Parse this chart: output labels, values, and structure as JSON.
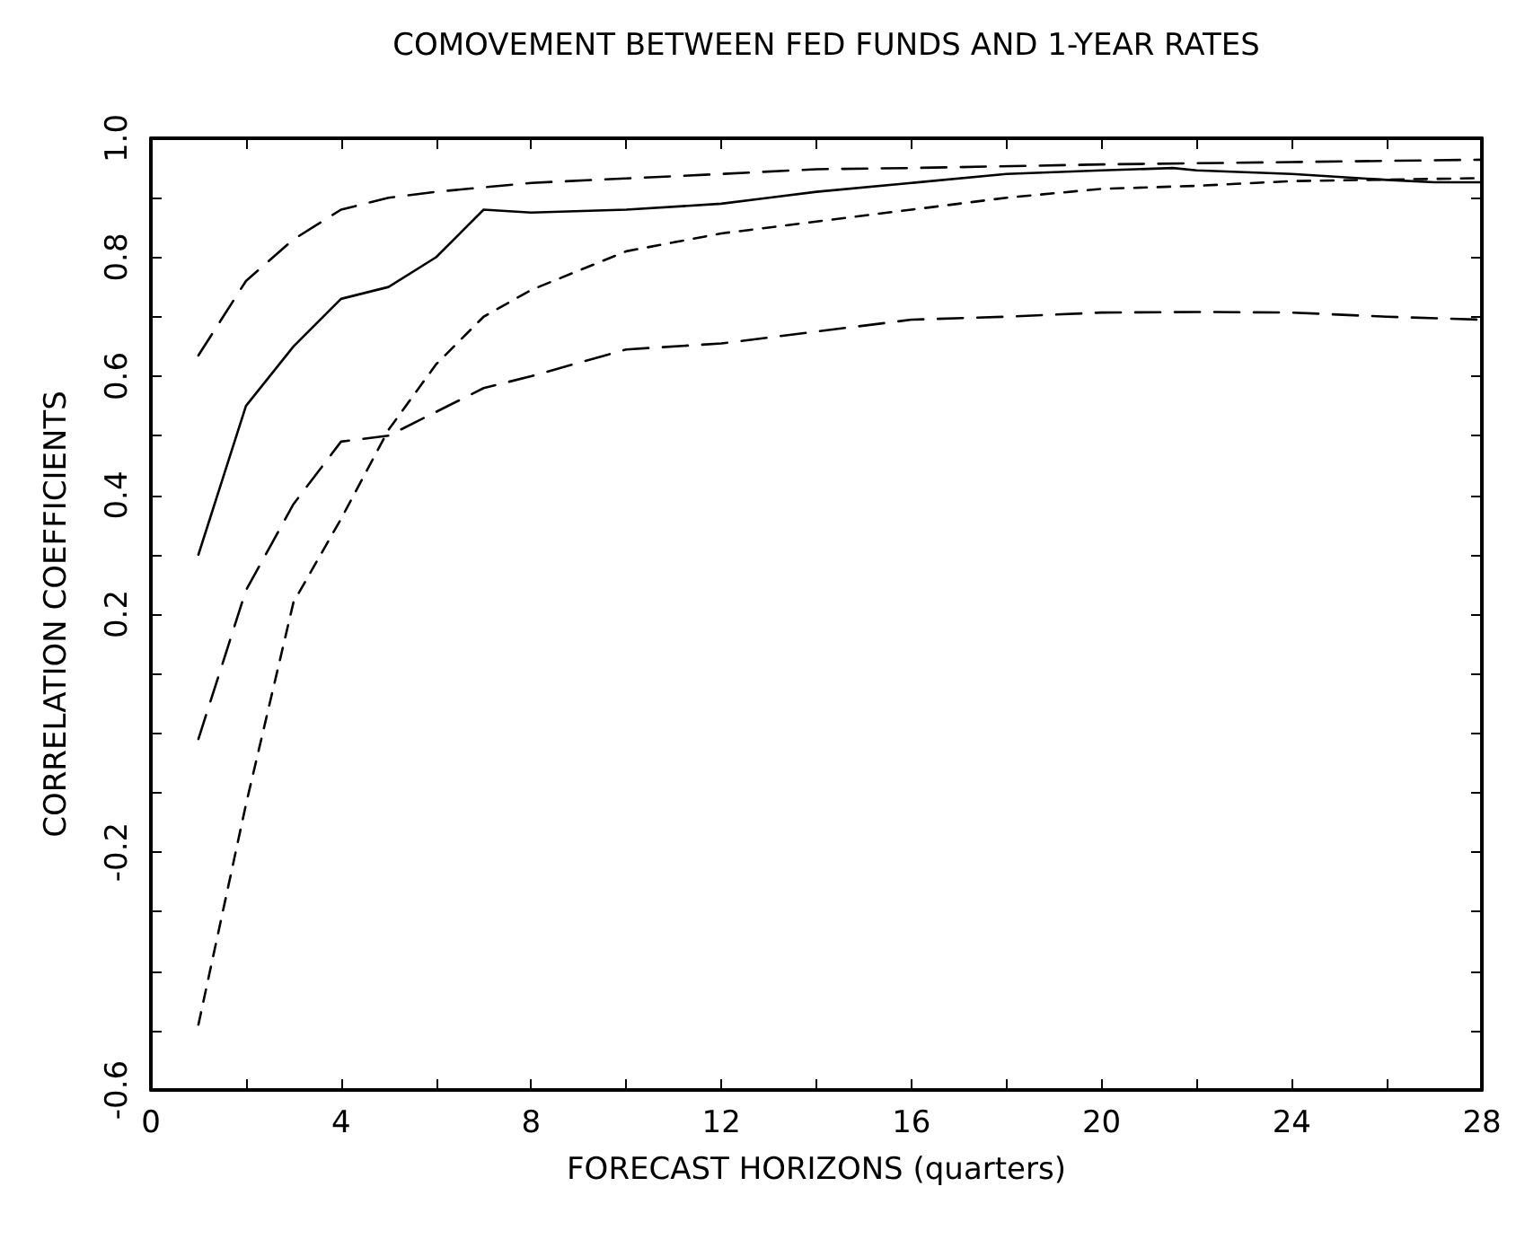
{
  "chart_data": {
    "type": "line",
    "title": "COMOVEMENT BETWEEN FED FUNDS AND 1-YEAR RATES",
    "xlabel": "FORECAST HORIZONS (quarters)",
    "ylabel": "CORRELATION COEFFICIENTS",
    "xlim": [
      0,
      28
    ],
    "ylim": [
      -0.6,
      1.0
    ],
    "xticks": [
      0,
      {
        "value": 2,
        "label": null
      },
      4,
      {
        "value": 6,
        "label": null
      },
      8,
      {
        "value": 10,
        "label": null
      },
      12,
      {
        "value": 14,
        "label": null
      },
      16,
      {
        "value": 18,
        "label": null
      },
      20,
      {
        "value": 22,
        "label": null
      },
      24,
      {
        "value": 26,
        "label": null
      },
      28
    ],
    "yticks": [
      {
        "value": -0.6,
        "label": "-0.6"
      },
      {
        "value": -0.5,
        "label": null
      },
      {
        "value": -0.4,
        "label": null
      },
      {
        "value": -0.3,
        "label": null
      },
      {
        "value": -0.2,
        "label": "-0.2"
      },
      {
        "value": -0.1,
        "label": null
      },
      {
        "value": 0,
        "label": null
      },
      {
        "value": 0.1,
        "label": null
      },
      {
        "value": 0.2,
        "label": "0.2"
      },
      {
        "value": 0.3,
        "label": null
      },
      {
        "value": 0.4,
        "label": "0.4"
      },
      {
        "value": 0.5,
        "label": null
      },
      {
        "value": 0.6,
        "label": "0.6"
      },
      {
        "value": 0.7,
        "label": null
      },
      {
        "value": 0.8,
        "label": "0.8"
      },
      {
        "value": 0.9,
        "label": null
      },
      {
        "value": 1.0,
        "label": "1.0"
      }
    ],
    "grid": false,
    "marker": "none",
    "series": [
      {
        "color": "#000000",
        "line_style": "solid",
        "x": [
          1,
          2,
          3,
          4,
          5,
          6,
          7,
          8,
          10,
          12,
          13,
          14,
          16,
          18,
          20,
          21.5,
          22,
          24,
          26,
          27,
          28
        ],
        "values": [
          0.3,
          0.55,
          0.65,
          0.73,
          0.75,
          0.8,
          0.88,
          0.875,
          0.88,
          0.89,
          0.9,
          0.91,
          0.925,
          0.94,
          0.946,
          0.95,
          0.946,
          0.94,
          0.93,
          0.926,
          0.926
        ]
      },
      {
        "color": "#000000",
        "line_style": "dashed",
        "x": [
          1,
          2,
          3,
          4,
          5,
          6,
          8,
          12,
          14,
          16,
          20,
          24,
          28
        ],
        "values": [
          0.635,
          0.76,
          0.83,
          0.88,
          0.9,
          0.91,
          0.925,
          0.94,
          0.948,
          0.95,
          0.956,
          0.96,
          0.964
        ]
      },
      {
        "color": "#000000",
        "line_style": "dotted",
        "x": [
          1,
          2,
          3,
          4,
          5,
          6,
          7,
          8,
          10,
          12,
          14,
          16,
          18,
          20,
          22,
          24,
          28
        ],
        "values": [
          -0.49,
          -0.12,
          0.22,
          0.36,
          0.51,
          0.62,
          0.7,
          0.745,
          0.81,
          0.84,
          0.86,
          0.88,
          0.9,
          0.915,
          0.92,
          0.928,
          0.933
        ]
      },
      {
        "color": "#000000",
        "line_style": "dashed",
        "x": [
          1,
          2,
          3,
          4,
          5,
          6,
          7,
          8,
          10,
          12,
          14,
          16,
          18,
          20,
          22,
          24,
          26,
          28
        ],
        "values": [
          -0.01,
          0.24,
          0.385,
          0.49,
          0.5,
          0.54,
          0.58,
          0.6,
          0.645,
          0.655,
          0.675,
          0.695,
          0.7,
          0.707,
          0.708,
          0.707,
          0.7,
          0.695
        ]
      }
    ]
  }
}
